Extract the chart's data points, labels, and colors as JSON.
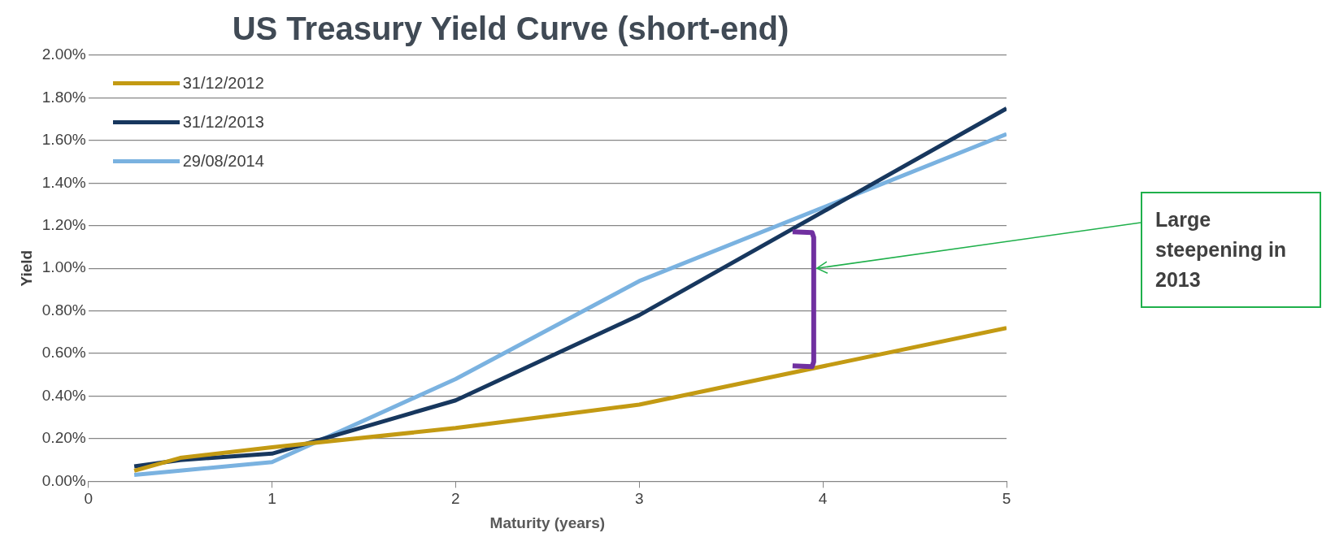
{
  "chart_data": {
    "type": "line",
    "title": "US Treasury Yield Curve (short-end)",
    "xlabel": "Maturity (years)",
    "ylabel": "Yield",
    "x": [
      0.25,
      0.5,
      1,
      2,
      3,
      5
    ],
    "series": [
      {
        "name": "31/12/2012",
        "color": "#c39a13",
        "values": [
          0.05,
          0.11,
          0.16,
          0.25,
          0.36,
          0.72
        ]
      },
      {
        "name": "31/12/2013",
        "color": "#17375e",
        "values": [
          0.07,
          0.1,
          0.13,
          0.38,
          0.78,
          1.75
        ]
      },
      {
        "name": "29/08/2014",
        "color": "#7ab2e0",
        "values": [
          0.03,
          0.05,
          0.09,
          0.48,
          0.94,
          1.63
        ]
      }
    ],
    "xlim": [
      0,
      5
    ],
    "xticks": [
      0,
      1,
      2,
      3,
      4,
      5
    ],
    "ylim": [
      0,
      2
    ],
    "yticks": [
      {
        "value": 0,
        "label": "0.00%"
      },
      {
        "value": 0.2,
        "label": "0.20%"
      },
      {
        "value": 0.4,
        "label": "0.40%"
      },
      {
        "value": 0.6,
        "label": "0.60%"
      },
      {
        "value": 0.8,
        "label": "0.80%"
      },
      {
        "value": 1,
        "label": "1.00%"
      },
      {
        "value": 1.2,
        "label": "1.20%"
      },
      {
        "value": 1.4,
        "label": "1.40%"
      },
      {
        "value": 1.6,
        "label": "1.60%"
      },
      {
        "value": 1.8,
        "label": "1.80%"
      },
      {
        "value": 2,
        "label": "2.00%"
      }
    ],
    "grid": "y",
    "legend": "top left",
    "marker": "none",
    "line_style": "solid",
    "annotations": [
      "Large steepening in 2013"
    ]
  }
}
